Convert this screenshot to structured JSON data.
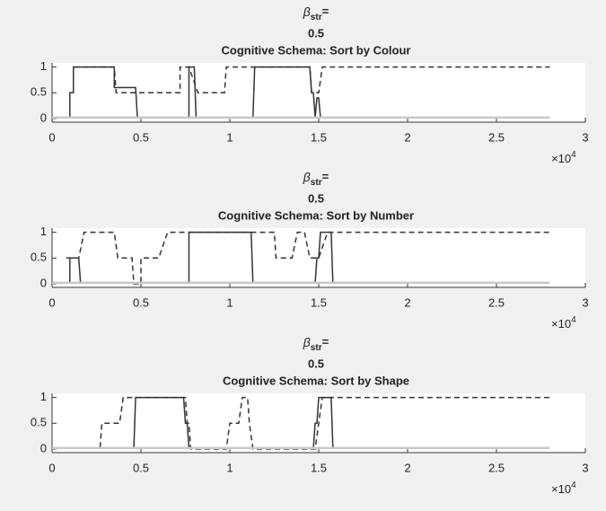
{
  "chart_data": [
    {
      "type": "line",
      "title_symbol": "β",
      "title_subscript": "str",
      "title_suffix": "=",
      "title_value": "0.5",
      "title": "Cognitive Schema: Sort by Colour",
      "xlim": [
        0,
        3
      ],
      "xticks": [
        0,
        0.5,
        1,
        1.5,
        2,
        2.5,
        3
      ],
      "ylim": [
        -0.07,
        1.08
      ],
      "yticks": [
        0,
        0.5,
        1
      ],
      "x_multiplier": "×10",
      "x_exponent": "4",
      "series": [
        {
          "style": "solid",
          "color": "#333333",
          "x": [
            0,
            0.1,
            0.1,
            0.12,
            0.12,
            0.35,
            0.35,
            0.47,
            0.48,
            0.77,
            0.77,
            0.8,
            0.81,
            1.13,
            1.14,
            1.45,
            1.46,
            1.47,
            1.48,
            1.49,
            1.5,
            1.51,
            1.58
          ],
          "values": [
            0.02,
            0.02,
            0.5,
            0.5,
            1,
            1,
            0.6,
            0.6,
            0.02,
            0.02,
            1,
            1,
            0.02,
            0.02,
            1,
            1,
            0.5,
            0.5,
            0.02,
            0.4,
            0.4,
            0.02,
            0.02
          ]
        },
        {
          "style": "dashed",
          "color": "#333333",
          "x": [
            0.12,
            0.35,
            0.36,
            0.72,
            0.72,
            0.77,
            0.82,
            0.97,
            0.98,
            1.45,
            1.46,
            1.5,
            1.52,
            2.8
          ],
          "values": [
            1,
            1,
            0.5,
            0.5,
            1,
            1,
            0.5,
            0.5,
            1,
            1,
            0.5,
            0.5,
            1,
            1
          ]
        },
        {
          "style": "solid",
          "color": "#c8c8c8",
          "x": [
            0,
            2.8
          ],
          "values": [
            0.02,
            0.02
          ]
        }
      ]
    },
    {
      "type": "line",
      "title_symbol": "β",
      "title_subscript": "str",
      "title_suffix": "=",
      "title_value": "0.5",
      "title": "Cognitive Schema: Sort by Number",
      "xlim": [
        0,
        3
      ],
      "xticks": [
        0,
        0.5,
        1,
        1.5,
        2,
        2.5,
        3
      ],
      "ylim": [
        -0.07,
        1.08
      ],
      "yticks": [
        0,
        0.5,
        1
      ],
      "x_multiplier": "×10",
      "x_exponent": "4",
      "series": [
        {
          "style": "solid",
          "color": "#333333",
          "x": [
            0,
            0.1,
            0.1,
            0.15,
            0.16,
            0.77,
            0.77,
            1.12,
            1.13,
            1.48,
            1.49,
            1.5,
            1.51,
            1.57,
            1.58
          ],
          "values": [
            0.02,
            0.02,
            0.5,
            0.5,
            0.02,
            0.02,
            1,
            1,
            0.02,
            0.02,
            0.5,
            0.5,
            1,
            1,
            0
          ]
        },
        {
          "style": "dashed",
          "color": "#333333",
          "x": [
            0.08,
            0.15,
            0.18,
            0.35,
            0.37,
            0.45,
            0.46,
            0.5,
            0.5,
            0.6,
            0.65,
            1.25,
            1.26,
            1.35,
            1.38,
            1.42,
            1.45,
            1.5,
            1.55,
            2.8
          ],
          "values": [
            0.5,
            0.5,
            1,
            1,
            0.5,
            0.5,
            0,
            0,
            0.5,
            0.5,
            1,
            1,
            0.5,
            0.5,
            1,
            1,
            0.5,
            0.5,
            1,
            1
          ]
        },
        {
          "style": "solid",
          "color": "#c8c8c8",
          "x": [
            0,
            2.8
          ],
          "values": [
            0.02,
            0.02
          ]
        }
      ]
    },
    {
      "type": "line",
      "title_symbol": "β",
      "title_subscript": "str",
      "title_suffix": "=",
      "title_value": "0.5",
      "title": "Cognitive Schema: Sort by Shape",
      "xlim": [
        0,
        3
      ],
      "xticks": [
        0,
        0.5,
        1,
        1.5,
        2,
        2.5,
        3
      ],
      "ylim": [
        -0.07,
        1.08
      ],
      "yticks": [
        0,
        0.5,
        1
      ],
      "x_multiplier": "×10",
      "x_exponent": "4",
      "series": [
        {
          "style": "solid",
          "color": "#333333",
          "x": [
            0,
            0.46,
            0.47,
            0.74,
            0.75,
            0.76,
            0.77,
            1.47,
            1.48,
            1.49,
            1.5,
            1.57,
            1.58
          ],
          "values": [
            0.02,
            0.02,
            1,
            1,
            0.5,
            0.5,
            0.02,
            0.02,
            0.5,
            0.5,
            1,
            1,
            0
          ]
        },
        {
          "style": "dashed",
          "color": "#333333",
          "x": [
            0.02,
            0.27,
            0.28,
            0.38,
            0.4,
            0.75,
            0.76,
            0.77,
            0.78,
            0.98,
            1.0,
            1.05,
            1.07,
            1.1,
            1.11,
            1.13,
            1.48,
            1.5,
            1.52,
            2.8
          ],
          "values": [
            0.02,
            0.02,
            0.5,
            0.5,
            1,
            1,
            0.5,
            0.5,
            0,
            0,
            0.5,
            0.5,
            1,
            1,
            0.5,
            0,
            0,
            0.5,
            1,
            1
          ]
        },
        {
          "style": "solid",
          "color": "#c8c8c8",
          "x": [
            0,
            2.8
          ],
          "values": [
            0.02,
            0.02
          ]
        }
      ]
    }
  ]
}
